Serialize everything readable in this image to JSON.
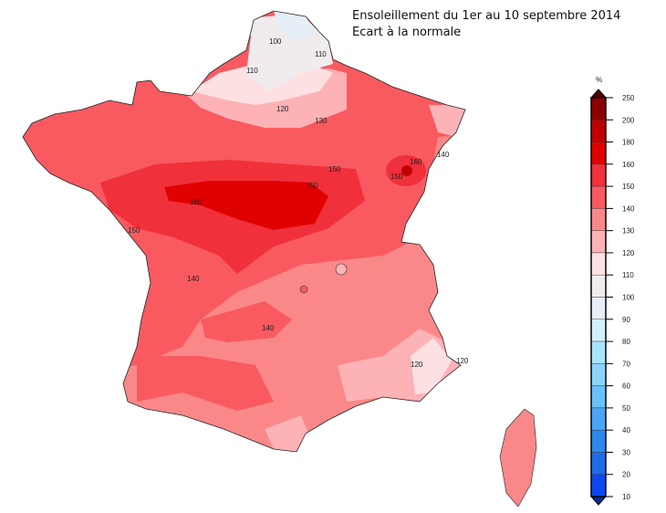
{
  "title": "Ensoleillement du 1er au 10 septembre 2014",
  "subtitle": "Ecart à la normale",
  "legend": {
    "unit": "%",
    "ticks": [
      "250",
      "200",
      "180",
      "160",
      "150",
      "140",
      "130",
      "120",
      "110",
      "100",
      "90",
      "80",
      "70",
      "60",
      "50",
      "40",
      "30",
      "20",
      "10"
    ],
    "colors": [
      "#8b0000",
      "#c00000",
      "#e00000",
      "#f0303a",
      "#f85a60",
      "#fa8888",
      "#fdb2b5",
      "#fde0e2",
      "#f0ecee",
      "#e6eef8",
      "#d0f0fc",
      "#a8e4fc",
      "#8cd4fc",
      "#6ac0fa",
      "#4aa4f4",
      "#2c88ec",
      "#1c6ce8",
      "#0c48f0"
    ],
    "over_color": "#5a0000",
    "under_color": "#0a2a90"
  },
  "contour_labels": [
    "100",
    "110",
    "110",
    "120",
    "130",
    "140",
    "150",
    "160",
    "160",
    "150",
    "150",
    "150",
    "140",
    "140",
    "120",
    "120"
  ]
}
